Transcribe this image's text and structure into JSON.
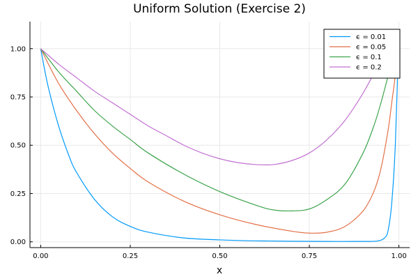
{
  "chart_data": {
    "type": "line",
    "title": "Uniform Solution (Exercise 2)",
    "xlabel": "x",
    "ylabel": "",
    "xlim": [
      -0.03,
      1.03
    ],
    "ylim": [
      -0.03,
      1.14
    ],
    "xticks": [
      0.0,
      0.25,
      0.5,
      0.75,
      1.0
    ],
    "xtick_labels": [
      "0.00",
      "0.25",
      "0.50",
      "0.75",
      "1.00"
    ],
    "yticks": [
      0.0,
      0.25,
      0.5,
      0.75,
      1.0
    ],
    "ytick_labels": [
      "0.00",
      "0.25",
      "0.50",
      "0.75",
      "1.00"
    ],
    "grid": true,
    "legend_position": "top-right",
    "series": [
      {
        "name": "ϵ = 0.01",
        "color": "#009af9",
        "x": [
          0,
          0.02,
          0.05,
          0.08,
          0.1,
          0.15,
          0.2,
          0.25,
          0.3,
          0.4,
          0.5,
          0.6,
          0.7,
          0.8,
          0.9,
          0.94,
          0.96,
          0.97,
          0.98,
          0.99,
          1.0
        ],
        "y": [
          1.0,
          0.81,
          0.6,
          0.44,
          0.36,
          0.22,
          0.13,
          0.08,
          0.05,
          0.02,
          0.01,
          0.005,
          0.003,
          0.002,
          0.002,
          0.004,
          0.02,
          0.06,
          0.2,
          0.5,
          1.1
        ]
      },
      {
        "name": "ϵ = 0.05",
        "color": "#e26f46",
        "x": [
          0,
          0.05,
          0.1,
          0.15,
          0.2,
          0.25,
          0.3,
          0.4,
          0.5,
          0.6,
          0.7,
          0.75,
          0.8,
          0.85,
          0.9,
          0.93,
          0.95,
          0.97,
          0.98,
          0.99,
          1.0
        ],
        "y": [
          1.0,
          0.82,
          0.68,
          0.56,
          0.46,
          0.38,
          0.31,
          0.21,
          0.14,
          0.09,
          0.055,
          0.045,
          0.05,
          0.08,
          0.16,
          0.26,
          0.38,
          0.58,
          0.72,
          0.86,
          1.02
        ]
      },
      {
        "name": "ϵ = 0.1",
        "color": "#3da44d",
        "x": [
          0,
          0.05,
          0.1,
          0.15,
          0.2,
          0.25,
          0.3,
          0.4,
          0.5,
          0.6,
          0.65,
          0.7,
          0.75,
          0.8,
          0.85,
          0.9,
          0.93,
          0.95,
          0.97,
          0.99,
          1.0
        ],
        "y": [
          1.0,
          0.88,
          0.78,
          0.68,
          0.6,
          0.53,
          0.46,
          0.35,
          0.26,
          0.19,
          0.165,
          0.16,
          0.17,
          0.22,
          0.3,
          0.46,
          0.6,
          0.72,
          0.86,
          1.0,
          1.04
        ]
      },
      {
        "name": "ϵ = 0.2",
        "color": "#c271d2",
        "x": [
          0,
          0.05,
          0.1,
          0.15,
          0.2,
          0.25,
          0.3,
          0.35,
          0.4,
          0.45,
          0.5,
          0.55,
          0.6,
          0.65,
          0.7,
          0.75,
          0.8,
          0.85,
          0.9,
          0.95,
          0.98,
          1.0
        ],
        "y": [
          1.0,
          0.92,
          0.85,
          0.78,
          0.72,
          0.66,
          0.6,
          0.55,
          0.5,
          0.46,
          0.43,
          0.41,
          0.4,
          0.4,
          0.42,
          0.46,
          0.53,
          0.63,
          0.77,
          0.94,
          1.04,
          1.1
        ]
      }
    ]
  }
}
